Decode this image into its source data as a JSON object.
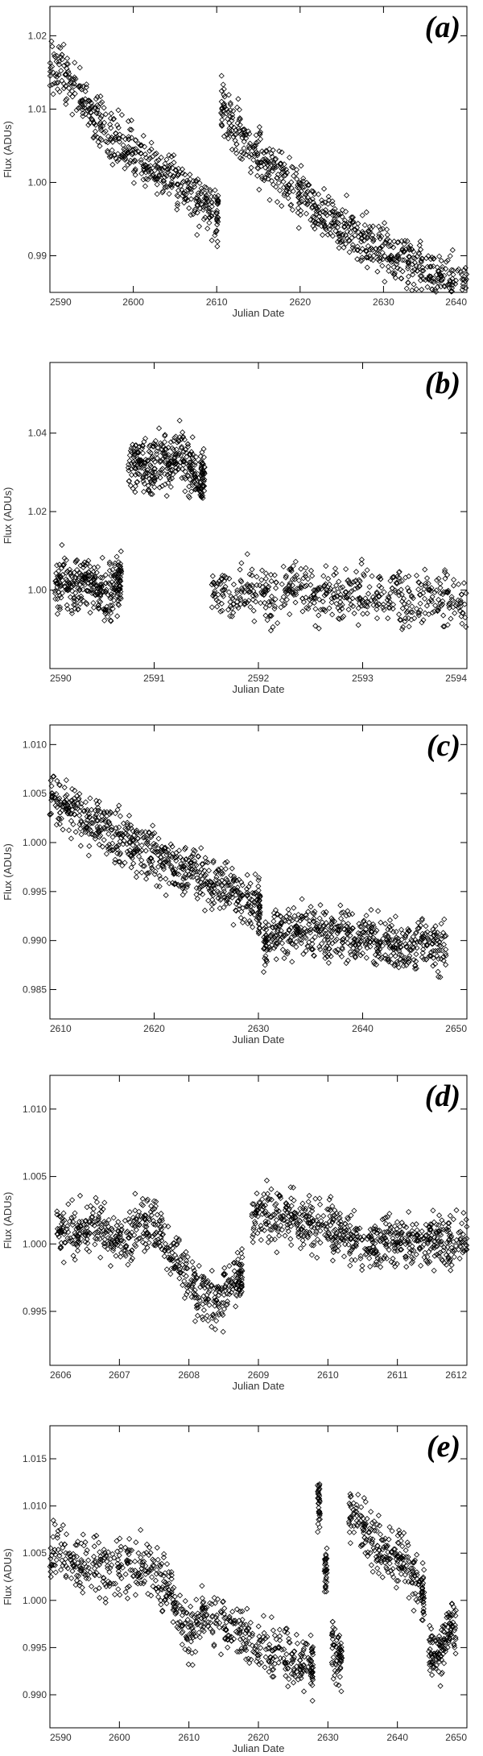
{
  "chart_data": [
    {
      "type": "scatter",
      "panel_label": "(a)",
      "xlabel": "Julian Date",
      "ylabel": "Flux (ADUs)",
      "xlim": [
        2590,
        2640
      ],
      "ylim": [
        0.985,
        1.024
      ],
      "xticks": [
        "2590",
        "2600",
        "2610",
        "2620",
        "2630",
        "2640"
      ],
      "yticks": [
        "0.99",
        "1.00",
        "1.01",
        "1.02"
      ],
      "marker": "diamond",
      "x": [
        2590.0,
        2591.0,
        2592.0,
        2593.0,
        2594.0,
        2595.0,
        2596.0,
        2597.0,
        2598.0,
        2599.0,
        2600.0,
        2601.0,
        2602.0,
        2603.0,
        2604.0,
        2605.0,
        2606.0,
        2607.0,
        2608.0,
        2609.0,
        2610.0,
        2610.5,
        2611.0,
        2612.0,
        2613.0,
        2614.0,
        2615.0,
        2616.0,
        2617.0,
        2618.0,
        2619.0,
        2620.0,
        2621.0,
        2622.0,
        2623.0,
        2624.0,
        2625.0,
        2626.0,
        2627.0,
        2628.0,
        2629.0,
        2630.0,
        2631.0,
        2632.0,
        2633.0,
        2634.0,
        2635.0,
        2636.0,
        2637.0,
        2638.0,
        2639.0,
        2640.0
      ],
      "y": [
        1.017,
        1.0155,
        1.014,
        1.0125,
        1.011,
        1.0095,
        1.008,
        1.0068,
        1.0058,
        1.0048,
        1.0038,
        1.003,
        1.0022,
        1.0014,
        1.0006,
        0.9998,
        0.999,
        0.9982,
        0.9974,
        0.9966,
        0.9958,
        1.011,
        1.0092,
        1.0078,
        1.0065,
        1.0052,
        1.004,
        1.0028,
        1.0016,
        1.0005,
        0.9994,
        0.9984,
        0.9975,
        0.9966,
        0.9958,
        0.995,
        0.9942,
        0.9935,
        0.9928,
        0.9921,
        0.9914,
        0.9907,
        0.99,
        0.9895,
        0.989,
        0.9885,
        0.988,
        0.9875,
        0.987,
        0.9866,
        0.9862,
        0.9858
      ]
    },
    {
      "type": "scatter",
      "panel_label": "(b)",
      "xlabel": "Julian Date",
      "ylabel": "Flux (ADUs)",
      "xlim": [
        2590,
        2594
      ],
      "ylim": [
        0.98,
        1.058
      ],
      "xticks": [
        "2590",
        "2591",
        "2592",
        "2593",
        "2594"
      ],
      "yticks": [
        "1.00",
        "1.02",
        "1.04"
      ],
      "marker": "diamond",
      "x": [
        2590.05,
        2590.15,
        2590.25,
        2590.35,
        2590.45,
        2590.55,
        2590.65,
        2590.75,
        2590.85,
        2590.95,
        2591.05,
        2591.15,
        2591.25,
        2591.35,
        2591.45,
        2591.55,
        2591.75,
        2591.95,
        2592.15,
        2592.35,
        2592.55,
        2592.75,
        2592.95,
        2593.15,
        2593.35,
        2593.55,
        2593.75,
        2593.95
      ],
      "y": [
        1.001,
        1.002,
        1.0,
        1.003,
        1.001,
        0.999,
        1.002,
        1.031,
        1.034,
        1.03,
        1.033,
        1.032,
        1.035,
        1.031,
        1.029,
        1.001,
        0.999,
        1.0,
        0.998,
        1.001,
        0.997,
        0.999,
        1.0,
        0.998,
        0.997,
        0.999,
        0.998,
        0.996
      ]
    },
    {
      "type": "scatter",
      "panel_label": "(c)",
      "xlabel": "Julian Date",
      "ylabel": "Flux (ADUs)",
      "xlim": [
        2610,
        2650
      ],
      "ylim": [
        0.982,
        1.012
      ],
      "xticks": [
        "2610",
        "2620",
        "2630",
        "2640",
        "2650"
      ],
      "yticks": [
        "0.985",
        "0.990",
        "0.995",
        "1.000",
        "1.005",
        "1.010"
      ],
      "marker": "diamond",
      "x": [
        2610.0,
        2611.0,
        2612.0,
        2613.0,
        2614.0,
        2615.0,
        2616.0,
        2617.0,
        2618.0,
        2619.0,
        2620.0,
        2621.0,
        2622.0,
        2623.0,
        2624.0,
        2625.0,
        2626.0,
        2627.0,
        2628.0,
        2629.0,
        2630.0,
        2630.5,
        2631.0,
        2632.0,
        2633.0,
        2634.0,
        2635.0,
        2636.0,
        2637.0,
        2638.0,
        2639.0,
        2640.0,
        2641.0,
        2642.0,
        2643.0,
        2644.0,
        2645.0,
        2646.0,
        2647.0
      ],
      "y": [
        1.0045,
        1.0038,
        1.0031,
        1.0025,
        1.0019,
        1.0013,
        1.0008,
        1.0003,
        0.9998,
        0.9993,
        0.9988,
        0.9983,
        0.9978,
        0.9973,
        0.9968,
        0.9963,
        0.9958,
        0.9953,
        0.9948,
        0.9943,
        0.9938,
        0.9895,
        0.9905,
        0.9908,
        0.991,
        0.9911,
        0.9909,
        0.9907,
        0.9905,
        0.9903,
        0.9901,
        0.99,
        0.9899,
        0.9898,
        0.9897,
        0.9896,
        0.9895,
        0.9894,
        0.9893
      ]
    },
    {
      "type": "scatter",
      "panel_label": "(d)",
      "xlabel": "Julian Date",
      "ylabel": "Flux (ADUs)",
      "xlim": [
        2606,
        2612
      ],
      "ylim": [
        0.991,
        1.0125
      ],
      "xticks": [
        "2606",
        "2607",
        "2608",
        "2609",
        "2610",
        "2611",
        "2612"
      ],
      "yticks": [
        "0.995",
        "1.000",
        "1.005",
        "1.010"
      ],
      "marker": "diamond",
      "x": [
        2606.1,
        2606.3,
        2606.5,
        2606.7,
        2606.9,
        2607.1,
        2607.3,
        2607.5,
        2607.7,
        2607.9,
        2608.1,
        2608.3,
        2608.5,
        2608.7,
        2608.9,
        2609.1,
        2609.3,
        2609.5,
        2609.7,
        2609.9,
        2610.1,
        2610.3,
        2610.5,
        2610.7,
        2610.9,
        2611.1,
        2611.3,
        2611.5,
        2611.7,
        2611.9
      ],
      "y": [
        1.0008,
        1.0012,
        1.0005,
        1.0015,
        1.0002,
        1.0009,
        1.0014,
        1.0011,
        0.9995,
        0.998,
        0.9965,
        0.9958,
        0.996,
        0.9975,
        1.0012,
        1.0025,
        1.0018,
        1.0021,
        1.0015,
        1.0018,
        1.001,
        1.0005,
        1.0001,
        0.9998,
        1.0004,
        1.0002,
        0.9999,
        1.0006,
        1.0001,
        1.0003
      ]
    },
    {
      "type": "scatter",
      "panel_label": "(e)",
      "xlabel": "Julian Date",
      "ylabel": "Flux (ADUs)",
      "xlim": [
        2590,
        2650
      ],
      "ylim": [
        0.9865,
        1.0185
      ],
      "xticks": [
        "2590",
        "2600",
        "2610",
        "2620",
        "2630",
        "2640",
        "2650"
      ],
      "yticks": [
        "0.990",
        "0.995",
        "1.000",
        "1.005",
        "1.010",
        "1.015"
      ],
      "marker": "diamond",
      "x": [
        2590.0,
        2592.0,
        2594.0,
        2596.0,
        2598.0,
        2600.0,
        2602.0,
        2604.0,
        2606.0,
        2607.5,
        2609.0,
        2610.5,
        2612.0,
        2614.0,
        2616.0,
        2618.0,
        2620.0,
        2622.0,
        2624.0,
        2626.0,
        2627.5,
        2628.5,
        2629.5,
        2630.5,
        2631.5,
        2633.0,
        2634.5,
        2636.0,
        2637.5,
        2639.0,
        2640.5,
        2642.0,
        2643.5,
        2644.5,
        2645.5,
        2646.5,
        2647.5
      ],
      "y": [
        1.005,
        1.0048,
        1.0045,
        1.004,
        1.0025,
        1.0035,
        1.0038,
        1.0032,
        1.002,
        1.0005,
        0.9975,
        0.996,
        0.9985,
        0.9975,
        0.997,
        0.9962,
        0.9955,
        0.9948,
        0.994,
        0.9935,
        0.993,
        1.01,
        1.0035,
        0.996,
        0.9935,
        1.0095,
        1.0085,
        1.007,
        1.0055,
        1.0045,
        1.004,
        1.003,
        1.001,
        0.9955,
        0.994,
        0.995,
        0.9965
      ]
    }
  ]
}
